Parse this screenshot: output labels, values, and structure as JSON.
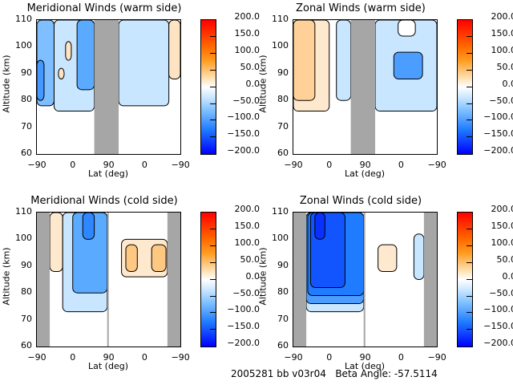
{
  "footer": {
    "text": "2005281 bb v03r04   Beta Angle: -57.5114"
  },
  "chart_data": [
    {
      "type": "heatmap",
      "title": "Meridional Winds (warm side)",
      "xlabel": "Lat (deg)",
      "ylabel": "Altitude (km)",
      "xticks": [
        "-90",
        "0",
        "90",
        "0",
        "-90"
      ],
      "yticks": [
        "110",
        "100",
        "90",
        "80",
        "70",
        "60"
      ],
      "ylim": [
        60,
        110
      ],
      "colorbar": {
        "ticks": [
          "200.0",
          "150.0",
          "100.0",
          "50.0",
          "0.0",
          "-50.0",
          "-100.0",
          "-150.0",
          "-200.0"
        ],
        "range": [
          -200,
          200
        ]
      },
      "gray_bands": [
        [
          0.4,
          0.57
        ]
      ],
      "regions": [
        {
          "x0": 0.0,
          "x1": 0.12,
          "y0": 78,
          "y1": 110,
          "v": -50
        },
        {
          "x0": 0.0,
          "x1": 0.05,
          "y0": 80,
          "y1": 95,
          "v": -75
        },
        {
          "x0": 0.12,
          "x1": 0.4,
          "y0": 76,
          "y1": 110,
          "v": -30
        },
        {
          "x0": 0.28,
          "x1": 0.4,
          "y0": 84,
          "y1": 110,
          "v": -60
        },
        {
          "x0": 0.2,
          "x1": 0.24,
          "y0": 95,
          "y1": 102,
          "v": 30
        },
        {
          "x0": 0.15,
          "x1": 0.19,
          "y0": 88,
          "y1": 92,
          "v": 30
        },
        {
          "x0": 0.57,
          "x1": 0.92,
          "y0": 78,
          "y1": 110,
          "v": -30
        },
        {
          "x0": 0.92,
          "x1": 1.0,
          "y0": 88,
          "y1": 110,
          "v": 30
        }
      ]
    },
    {
      "type": "heatmap",
      "title": "Zonal Winds (warm side)",
      "xlabel": "Lat (deg)",
      "ylabel": "Altitude (km)",
      "xticks": [
        "-90",
        "0",
        "90",
        "0",
        "-90"
      ],
      "yticks": [
        "110",
        "100",
        "90",
        "80",
        "70",
        "60"
      ],
      "ylim": [
        60,
        110
      ],
      "colorbar": {
        "ticks": [
          "200.0",
          "150.0",
          "100.0",
          "50.0",
          "0.0",
          "-50.0",
          "-100.0",
          "-150.0",
          "-200.0"
        ],
        "range": [
          -200,
          200
        ]
      },
      "gray_bands": [
        [
          0.4,
          0.57
        ]
      ],
      "regions": [
        {
          "x0": 0.0,
          "x1": 0.25,
          "y0": 76,
          "y1": 110,
          "v": 25
        },
        {
          "x0": 0.0,
          "x1": 0.15,
          "y0": 80,
          "y1": 110,
          "v": 50
        },
        {
          "x0": 0.3,
          "x1": 0.4,
          "y0": 80,
          "y1": 110,
          "v": -30
        },
        {
          "x0": 0.57,
          "x1": 1.0,
          "y0": 76,
          "y1": 110,
          "v": -30
        },
        {
          "x0": 0.7,
          "x1": 0.9,
          "y0": 88,
          "y1": 98,
          "v": -70
        },
        {
          "x0": 0.73,
          "x1": 0.85,
          "y0": 104,
          "y1": 110,
          "v": 0
        }
      ]
    },
    {
      "type": "heatmap",
      "title": "Meridional Winds (cold side)",
      "xlabel": "Lat (deg)",
      "ylabel": "Altitude (km)",
      "xticks": [
        "-90",
        "0",
        "90",
        "0",
        "-90"
      ],
      "yticks": [
        "110",
        "100",
        "90",
        "80",
        "70",
        "60"
      ],
      "ylim": [
        60,
        110
      ],
      "colorbar": {
        "ticks": [
          "200.0",
          "150.0",
          "100.0",
          "50.0",
          "0.0",
          "-50.0",
          "-100.0",
          "-150.0",
          "-200.0"
        ],
        "range": [
          -200,
          200
        ]
      },
      "gray_bands": [
        [
          0.0,
          0.09
        ],
        [
          0.49,
          0.5
        ],
        [
          0.91,
          1.0
        ]
      ],
      "regions": [
        {
          "x0": 0.09,
          "x1": 0.18,
          "y0": 88,
          "y1": 110,
          "v": 25
        },
        {
          "x0": 0.18,
          "x1": 0.49,
          "y0": 73,
          "y1": 110,
          "v": -30
        },
        {
          "x0": 0.25,
          "x1": 0.49,
          "y0": 80,
          "y1": 110,
          "v": -60
        },
        {
          "x0": 0.32,
          "x1": 0.4,
          "y0": 100,
          "y1": 110,
          "v": -90
        },
        {
          "x0": 0.59,
          "x1": 0.91,
          "y0": 86,
          "y1": 100,
          "v": 25
        },
        {
          "x0": 0.62,
          "x1": 0.7,
          "y0": 88,
          "y1": 98,
          "v": 60
        },
        {
          "x0": 0.8,
          "x1": 0.9,
          "y0": 88,
          "y1": 98,
          "v": 60
        }
      ]
    },
    {
      "type": "heatmap",
      "title": "Zonal Winds (cold side)",
      "xlabel": "Lat (deg)",
      "ylabel": "Altitude (km)",
      "xticks": [
        "-90",
        "0",
        "90",
        "0",
        "-90"
      ],
      "yticks": [
        "110",
        "100",
        "90",
        "80",
        "70",
        "60"
      ],
      "ylim": [
        60,
        110
      ],
      "colorbar": {
        "ticks": [
          "200.0",
          "150.0",
          "100.0",
          "50.0",
          "0.0",
          "-50.0",
          "-100.0",
          "-150.0",
          "-200.0"
        ],
        "range": [
          -200,
          200
        ]
      },
      "gray_bands": [
        [
          0.0,
          0.09
        ],
        [
          0.49,
          0.5
        ],
        [
          0.91,
          1.0
        ]
      ],
      "regions": [
        {
          "x0": 0.09,
          "x1": 0.49,
          "y0": 73,
          "y1": 110,
          "v": -30
        },
        {
          "x0": 0.09,
          "x1": 0.49,
          "y0": 76,
          "y1": 110,
          "v": -70
        },
        {
          "x0": 0.1,
          "x1": 0.49,
          "y0": 79,
          "y1": 110,
          "v": -100
        },
        {
          "x0": 0.12,
          "x1": 0.36,
          "y0": 82,
          "y1": 110,
          "v": -130
        },
        {
          "x0": 0.15,
          "x1": 0.22,
          "y0": 100,
          "y1": 110,
          "v": -160
        },
        {
          "x0": 0.59,
          "x1": 0.72,
          "y0": 88,
          "y1": 98,
          "v": 25
        },
        {
          "x0": 0.84,
          "x1": 0.91,
          "y0": 85,
          "y1": 102,
          "v": -30
        }
      ]
    }
  ]
}
